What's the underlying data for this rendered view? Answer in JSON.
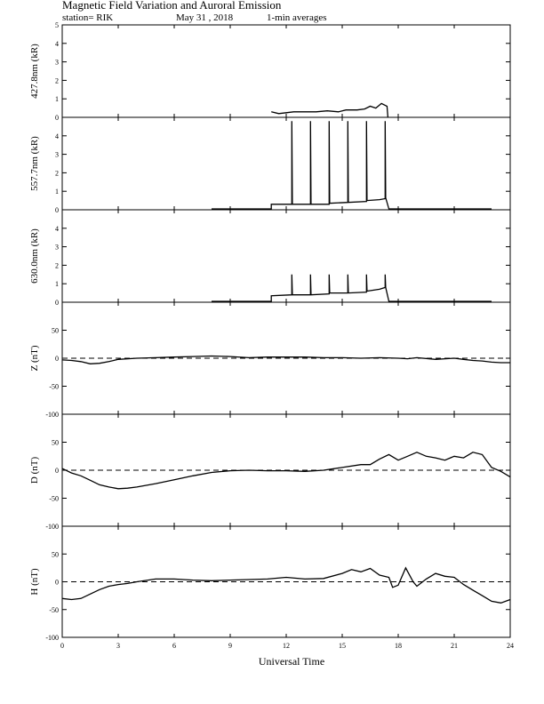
{
  "header": {
    "title": "Magnetic Field Variation and Auroral Emission",
    "station": "station= RIK",
    "date": "May 31 , 2018",
    "averaging": "1-min averages"
  },
  "chart_data": [
    {
      "type": "line",
      "ylabel": "427.8nm (kR)",
      "ylim": [
        0,
        5
      ],
      "yticks": [
        "0",
        "1",
        "2",
        "3",
        "4",
        "5"
      ],
      "series": [
        {
          "values": [
            [
              11.2,
              0.3
            ],
            [
              11.6,
              0.2
            ],
            [
              12.0,
              0.25
            ],
            [
              12.4,
              0.3
            ],
            [
              13.0,
              0.3
            ],
            [
              13.6,
              0.3
            ],
            [
              14.2,
              0.35
            ],
            [
              14.8,
              0.3
            ],
            [
              15.2,
              0.4
            ],
            [
              15.8,
              0.4
            ],
            [
              16.2,
              0.45
            ],
            [
              16.5,
              0.6
            ],
            [
              16.8,
              0.5
            ],
            [
              17.1,
              0.75
            ],
            [
              17.4,
              0.6
            ],
            [
              17.45,
              0
            ]
          ]
        }
      ]
    },
    {
      "type": "line",
      "ylabel": "557.7nm (kR)",
      "ylim": [
        0,
        5
      ],
      "yticks": [
        "0",
        "1",
        "2",
        "3",
        "4"
      ],
      "series": [
        {
          "values": [
            [
              8.0,
              0.05
            ],
            [
              11.2,
              0.05
            ],
            [
              11.2,
              0.3
            ],
            [
              12.3,
              0.3
            ],
            [
              12.3,
              4.8
            ],
            [
              12.33,
              0.3
            ],
            [
              13.3,
              0.3
            ],
            [
              13.3,
              4.8
            ],
            [
              13.33,
              0.3
            ],
            [
              14.3,
              0.3
            ],
            [
              14.3,
              4.8
            ],
            [
              14.33,
              0.35
            ],
            [
              15.3,
              0.4
            ],
            [
              15.3,
              4.8
            ],
            [
              15.33,
              0.4
            ],
            [
              16.3,
              0.45
            ],
            [
              16.3,
              4.8
            ],
            [
              16.33,
              0.5
            ],
            [
              17.0,
              0.55
            ],
            [
              17.3,
              0.6
            ],
            [
              17.3,
              4.8
            ],
            [
              17.33,
              0.65
            ],
            [
              17.5,
              0.05
            ],
            [
              23.0,
              0.05
            ]
          ]
        }
      ]
    },
    {
      "type": "line",
      "ylabel": "630.0nm (kR)",
      "ylim": [
        0,
        5
      ],
      "yticks": [
        "0",
        "1",
        "2",
        "3",
        "4"
      ],
      "series": [
        {
          "values": [
            [
              8.0,
              0.05
            ],
            [
              11.2,
              0.05
            ],
            [
              11.2,
              0.35
            ],
            [
              12.3,
              0.4
            ],
            [
              12.3,
              1.5
            ],
            [
              12.33,
              0.4
            ],
            [
              13.3,
              0.4
            ],
            [
              13.3,
              1.5
            ],
            [
              13.33,
              0.4
            ],
            [
              14.3,
              0.45
            ],
            [
              14.3,
              1.5
            ],
            [
              14.33,
              0.5
            ],
            [
              15.3,
              0.5
            ],
            [
              15.3,
              1.5
            ],
            [
              15.33,
              0.5
            ],
            [
              16.3,
              0.55
            ],
            [
              16.3,
              1.5
            ],
            [
              16.33,
              0.6
            ],
            [
              17.0,
              0.7
            ],
            [
              17.3,
              0.8
            ],
            [
              17.3,
              1.5
            ],
            [
              17.33,
              0.8
            ],
            [
              17.5,
              0.05
            ],
            [
              23.0,
              0.05
            ]
          ]
        }
      ]
    },
    {
      "type": "line",
      "ylabel": "Z (nT)",
      "ylim": [
        -100,
        100
      ],
      "yticks": [
        "-100",
        "-50",
        "0",
        "50"
      ],
      "baseline": 0,
      "series": [
        {
          "values": [
            [
              0,
              -3
            ],
            [
              0.5,
              -4
            ],
            [
              1.0,
              -6
            ],
            [
              1.5,
              -10
            ],
            [
              2.0,
              -9
            ],
            [
              2.5,
              -6
            ],
            [
              3.0,
              -2
            ],
            [
              4.0,
              0
            ],
            [
              5.0,
              1
            ],
            [
              6.0,
              2
            ],
            [
              7.0,
              3
            ],
            [
              8.0,
              4
            ],
            [
              9.0,
              3
            ],
            [
              10.0,
              1
            ],
            [
              11.0,
              2
            ],
            [
              12.0,
              2
            ],
            [
              13.0,
              2
            ],
            [
              14.0,
              1
            ],
            [
              15.0,
              1
            ],
            [
              16.0,
              0
            ],
            [
              17.0,
              1
            ],
            [
              18.0,
              0
            ],
            [
              18.5,
              -1
            ],
            [
              19.0,
              1
            ],
            [
              20.0,
              -2
            ],
            [
              21.0,
              0
            ],
            [
              21.5,
              -2
            ],
            [
              22.0,
              -4
            ],
            [
              22.5,
              -5
            ],
            [
              23.0,
              -7
            ],
            [
              23.5,
              -8
            ],
            [
              24.0,
              -8
            ]
          ]
        }
      ]
    },
    {
      "type": "line",
      "ylabel": "D (nT)",
      "ylim": [
        -100,
        100
      ],
      "yticks": [
        "-100",
        "-50",
        "0",
        "50"
      ],
      "baseline": 0,
      "series": [
        {
          "values": [
            [
              0,
              3
            ],
            [
              0.5,
              -5
            ],
            [
              1.0,
              -10
            ],
            [
              1.5,
              -18
            ],
            [
              2.0,
              -26
            ],
            [
              2.5,
              -30
            ],
            [
              3.0,
              -33
            ],
            [
              3.5,
              -32
            ],
            [
              4.0,
              -30
            ],
            [
              5.0,
              -24
            ],
            [
              6.0,
              -17
            ],
            [
              7.0,
              -10
            ],
            [
              8.0,
              -4
            ],
            [
              9.0,
              -1
            ],
            [
              10.0,
              0
            ],
            [
              11.0,
              -1
            ],
            [
              12.0,
              -1
            ],
            [
              13.0,
              -2
            ],
            [
              14.0,
              0
            ],
            [
              15.0,
              5
            ],
            [
              16.0,
              10
            ],
            [
              16.5,
              10
            ],
            [
              17.0,
              20
            ],
            [
              17.5,
              28
            ],
            [
              18.0,
              18
            ],
            [
              18.5,
              25
            ],
            [
              19.0,
              32
            ],
            [
              19.5,
              25
            ],
            [
              20.0,
              22
            ],
            [
              20.5,
              18
            ],
            [
              21.0,
              25
            ],
            [
              21.5,
              22
            ],
            [
              22.0,
              32
            ],
            [
              22.5,
              28
            ],
            [
              23.0,
              5
            ],
            [
              23.5,
              -2
            ],
            [
              24.0,
              -12
            ]
          ]
        }
      ]
    },
    {
      "type": "line",
      "ylabel": "H (nT)",
      "ylim": [
        -100,
        100
      ],
      "yticks": [
        "-100",
        "-50",
        "0",
        "50"
      ],
      "baseline": 0,
      "series": [
        {
          "values": [
            [
              0,
              -30
            ],
            [
              0.5,
              -32
            ],
            [
              1.0,
              -30
            ],
            [
              1.5,
              -22
            ],
            [
              2.0,
              -14
            ],
            [
              2.5,
              -8
            ],
            [
              3.0,
              -5
            ],
            [
              3.5,
              -3
            ],
            [
              4.0,
              0
            ],
            [
              5.0,
              5
            ],
            [
              6.0,
              5
            ],
            [
              7.0,
              3
            ],
            [
              8.0,
              2
            ],
            [
              9.0,
              3
            ],
            [
              10.0,
              4
            ],
            [
              11.0,
              5
            ],
            [
              12.0,
              8
            ],
            [
              13.0,
              5
            ],
            [
              14.0,
              6
            ],
            [
              15.0,
              15
            ],
            [
              15.5,
              22
            ],
            [
              16.0,
              18
            ],
            [
              16.5,
              24
            ],
            [
              17.0,
              12
            ],
            [
              17.5,
              8
            ],
            [
              17.7,
              -10
            ],
            [
              18.0,
              -6
            ],
            [
              18.4,
              25
            ],
            [
              18.8,
              0
            ],
            [
              19.0,
              -8
            ],
            [
              19.5,
              5
            ],
            [
              20.0,
              15
            ],
            [
              20.5,
              10
            ],
            [
              21.0,
              8
            ],
            [
              21.5,
              -5
            ],
            [
              22.0,
              -15
            ],
            [
              22.5,
              -25
            ],
            [
              23.0,
              -35
            ],
            [
              23.5,
              -38
            ],
            [
              24.0,
              -32
            ]
          ]
        }
      ]
    }
  ],
  "x_axis": {
    "xlim": [
      0,
      24
    ],
    "ticks": [
      "0",
      "3",
      "6",
      "9",
      "12",
      "15",
      "18",
      "21",
      "24"
    ],
    "label": "Universal Time"
  }
}
